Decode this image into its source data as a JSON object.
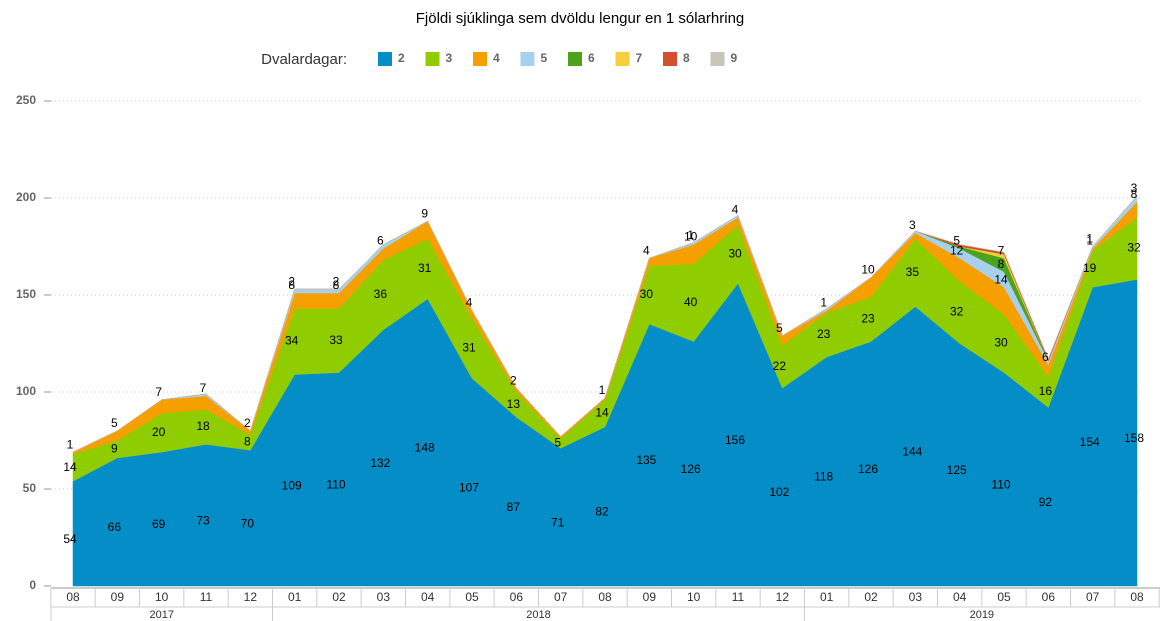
{
  "chart_data": {
    "type": "stacked-area",
    "title": "Fjöldi sjúklinga sem dvöldu lengur en 1 sólarhring",
    "legend_title": "Dvalardagar:",
    "categories": [
      "08",
      "09",
      "10",
      "11",
      "12",
      "01",
      "02",
      "03",
      "04",
      "05",
      "06",
      "07",
      "08",
      "09",
      "10",
      "11",
      "12",
      "01",
      "02",
      "03",
      "04",
      "05",
      "06",
      "07",
      "08"
    ],
    "years": [
      "2017",
      "2017",
      "2017",
      "2017",
      "2017",
      "2018",
      "2018",
      "2018",
      "2018",
      "2018",
      "2018",
      "2018",
      "2018",
      "2018",
      "2018",
      "2018",
      "2018",
      "2019",
      "2019",
      "2019",
      "2019",
      "2019",
      "2019",
      "2019",
      "2019"
    ],
    "ylim": [
      0,
      250
    ],
    "yticks": [
      0,
      50,
      100,
      150,
      200,
      250
    ],
    "grid": true,
    "series": [
      {
        "name": "2",
        "color": "#058dc7",
        "values": [
          54,
          66,
          69,
          73,
          70,
          109,
          110,
          132,
          148,
          107,
          87,
          71,
          82,
          135,
          126,
          156,
          102,
          118,
          126,
          144,
          125,
          110,
          92,
          154,
          158
        ]
      },
      {
        "name": "3",
        "color": "#8fcc00",
        "values": [
          14,
          9,
          20,
          18,
          8,
          34,
          33,
          36,
          31,
          31,
          13,
          5,
          14,
          30,
          40,
          30,
          22,
          23,
          23,
          35,
          32,
          30,
          16,
          19,
          32
        ]
      },
      {
        "name": "4",
        "color": "#f59f00",
        "values": [
          1,
          5,
          7,
          7,
          2,
          8,
          8,
          6,
          9,
          4,
          2,
          1,
          1,
          4,
          10,
          4,
          5,
          1,
          10,
          3,
          12,
          14,
          6,
          1,
          8
        ],
        "value_labels": [
          "1",
          "5",
          "7",
          "7",
          "2",
          "8",
          "8",
          "6",
          "9",
          "4",
          "2",
          null,
          "1",
          "4",
          "10",
          "4",
          "5",
          "1",
          "10",
          "3",
          "12",
          "14",
          "6",
          "1",
          "8"
        ]
      },
      {
        "name": "5",
        "color": "#a6d0ee",
        "values": [
          0,
          0,
          0,
          1,
          0,
          2,
          2,
          2,
          0,
          0,
          0,
          0,
          0,
          0,
          1,
          1,
          0,
          1,
          0,
          1,
          5,
          8,
          2,
          1,
          3
        ],
        "value_labels": [
          null,
          null,
          null,
          null,
          null,
          "2",
          "2",
          null,
          null,
          null,
          null,
          null,
          null,
          null,
          "1",
          null,
          null,
          null,
          null,
          null,
          "5",
          "8",
          null,
          "1",
          "3"
        ]
      },
      {
        "name": "6",
        "color": "#4ca21b",
        "values": [
          0,
          0,
          0,
          0,
          0,
          0,
          0,
          0,
          0,
          0,
          0,
          0,
          0,
          0,
          0,
          0,
          0,
          0,
          0,
          0,
          1,
          7,
          0,
          0,
          0
        ],
        "value_labels": [
          null,
          null,
          null,
          null,
          null,
          null,
          null,
          null,
          null,
          null,
          null,
          null,
          null,
          null,
          null,
          null,
          null,
          null,
          null,
          null,
          null,
          "7",
          null,
          null,
          null
        ]
      },
      {
        "name": "7",
        "color": "#f7cf3b",
        "values": [
          0,
          0,
          0,
          0,
          0,
          0,
          0,
          0,
          0,
          0,
          0,
          0,
          0,
          0,
          0,
          0,
          0,
          0,
          0,
          0,
          0,
          2,
          0,
          0,
          0
        ],
        "value_labels": [
          null,
          null,
          null,
          null,
          null,
          null,
          null,
          null,
          null,
          null,
          null,
          null,
          null,
          null,
          null,
          null,
          null,
          null,
          null,
          null,
          null,
          null,
          null,
          null,
          null
        ]
      },
      {
        "name": "8",
        "color": "#d2502c",
        "values": [
          0,
          0,
          0,
          0,
          0,
          0,
          0,
          0,
          0,
          0,
          0,
          0,
          0,
          0,
          0,
          0,
          0,
          0,
          0,
          0,
          1,
          1,
          1,
          0,
          0
        ],
        "value_labels": [
          null,
          null,
          null,
          null,
          null,
          null,
          null,
          null,
          null,
          null,
          null,
          null,
          null,
          null,
          null,
          null,
          null,
          null,
          null,
          null,
          null,
          null,
          null,
          null,
          null
        ]
      },
      {
        "name": "9",
        "color": "#c9c6b8",
        "values": [
          0,
          0,
          0,
          0,
          0,
          0,
          0,
          0,
          0,
          0,
          0,
          0,
          0,
          0,
          0,
          0,
          0,
          0,
          0,
          0,
          0,
          0,
          0,
          0,
          0
        ],
        "value_labels": [
          null,
          null,
          null,
          null,
          null,
          null,
          null,
          null,
          null,
          null,
          null,
          null,
          null,
          null,
          null,
          null,
          null,
          null,
          null,
          null,
          null,
          null,
          null,
          null,
          null
        ]
      }
    ]
  }
}
